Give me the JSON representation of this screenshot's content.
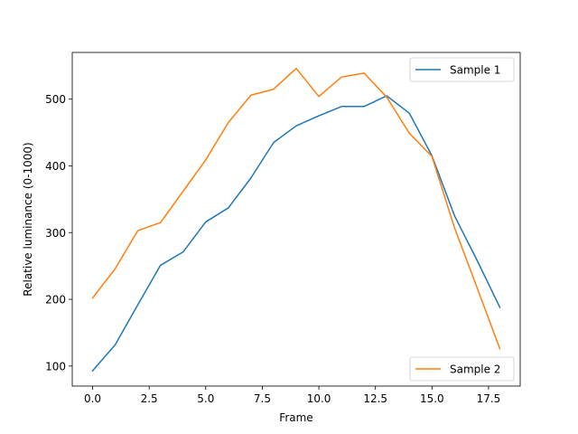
{
  "chart_data": {
    "type": "line",
    "title": "",
    "xlabel": "Frame",
    "ylabel": "Relative luminance (0-1000)",
    "xlim": [
      -0.9,
      18.9
    ],
    "ylim": [
      70,
      570
    ],
    "xticks": [
      0.0,
      2.5,
      5.0,
      7.5,
      10.0,
      12.5,
      15.0,
      17.5
    ],
    "xtick_labels": [
      "0.0",
      "2.5",
      "5.0",
      "7.5",
      "10.0",
      "12.5",
      "15.0",
      "17.5"
    ],
    "yticks": [
      100,
      200,
      300,
      400,
      500
    ],
    "ytick_labels": [
      "100",
      "200",
      "300",
      "400",
      "500"
    ],
    "grid": false,
    "x": [
      0,
      1,
      2,
      3,
      4,
      5,
      6,
      7,
      8,
      9,
      10,
      11,
      12,
      13,
      14,
      15,
      16,
      17,
      18
    ],
    "series": [
      {
        "name": "Sample 1",
        "color": "#1f77b4",
        "legend_position": "upper right",
        "values": [
          93,
          132,
          192,
          251,
          271,
          316,
          337,
          382,
          435,
          460,
          475,
          489,
          489,
          505,
          479,
          415,
          325,
          258,
          188
        ]
      },
      {
        "name": "Sample 2",
        "color": "#ff7f0e",
        "legend_position": "lower right",
        "values": [
          202,
          246,
          303,
          315,
          362,
          409,
          465,
          506,
          515,
          546,
          504,
          533,
          539,
          503,
          449,
          414,
          307,
          217,
          126
        ]
      }
    ]
  }
}
